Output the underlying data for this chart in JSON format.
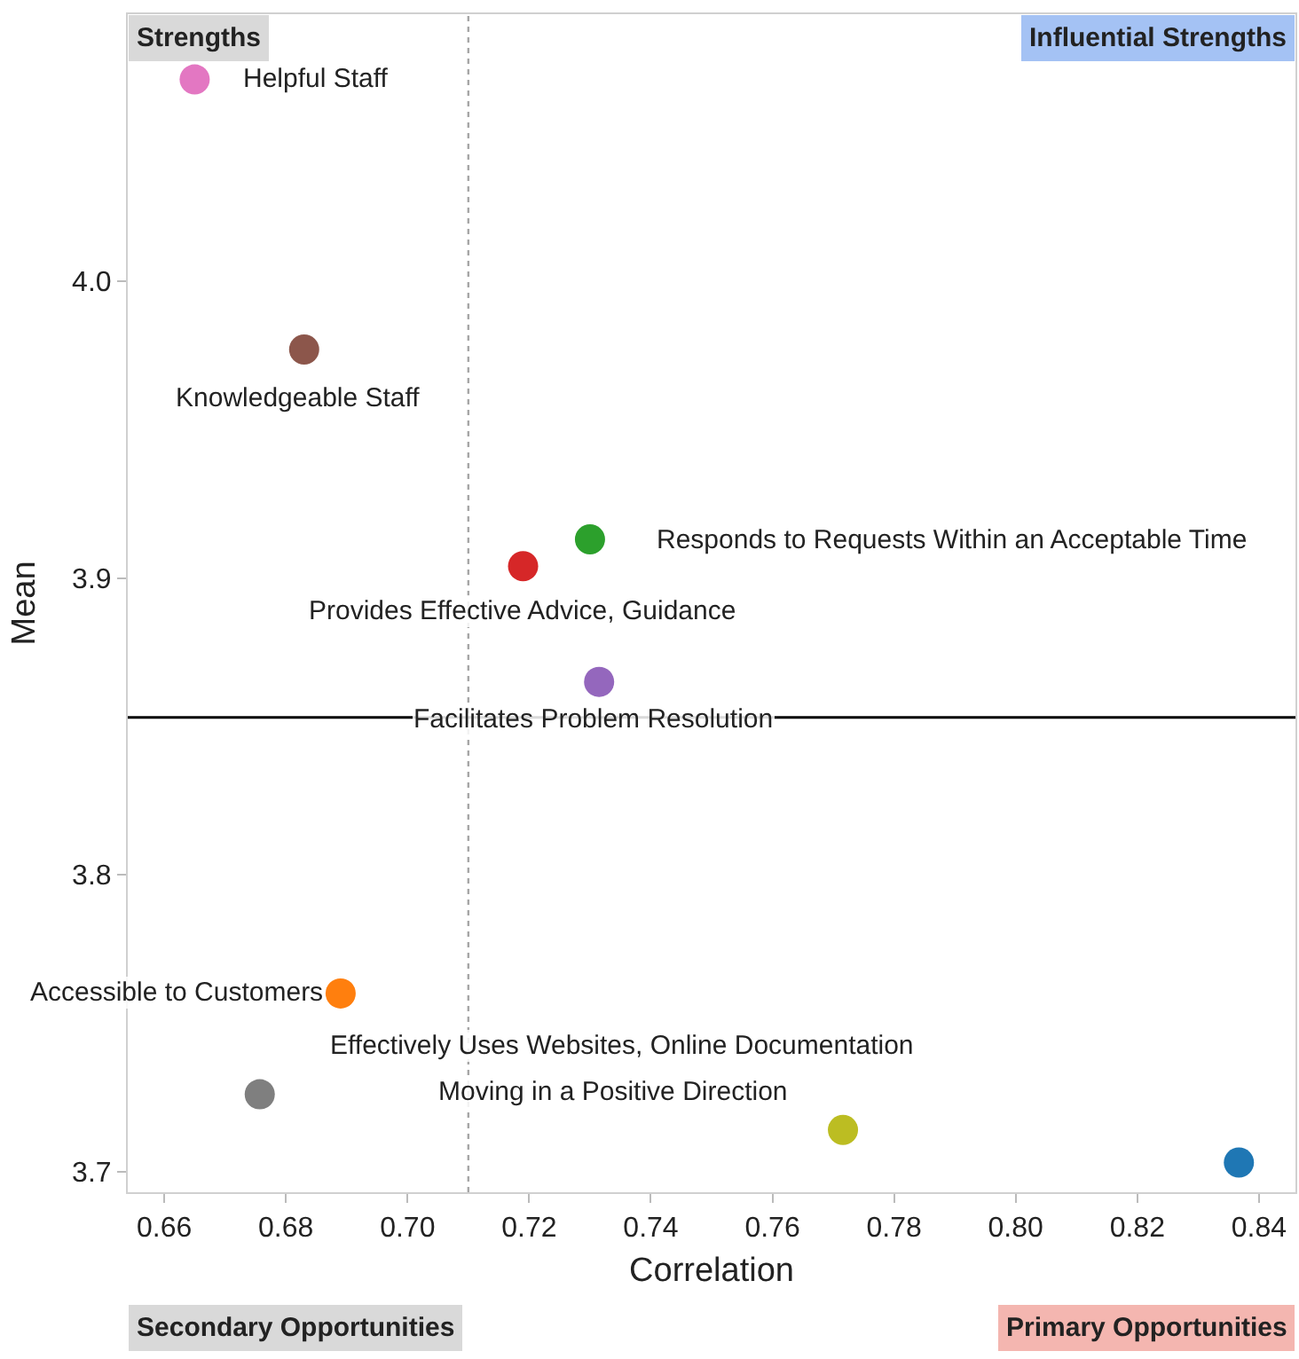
{
  "chart_data": {
    "type": "scatter",
    "xlabel": "Correlation",
    "ylabel": "Mean",
    "x": [
      0.665,
      0.683,
      0.73,
      0.719,
      0.7315,
      0.689,
      0.6757,
      0.7716,
      0.8367
    ],
    "values": [
      4.068,
      3.977,
      3.913,
      3.904,
      3.865,
      3.76,
      3.726,
      3.714,
      3.703
    ],
    "colors": [
      "#e377c2",
      "#8c564b",
      "#2ca02c",
      "#d62728",
      "#9467bd",
      "#ff7f0e",
      "#7f7f7f",
      "#bcbd22",
      "#1f77b4"
    ],
    "marker": "circle",
    "xlim": [
      0.654,
      0.846
    ],
    "ylim": [
      3.693,
      4.09
    ],
    "xticks": [
      0.66,
      0.68,
      {
        "value": 0.7,
        "label": "0.70"
      },
      0.72,
      0.74,
      0.76,
      0.78,
      {
        "value": 0.8,
        "label": "0.80"
      },
      0.82,
      0.84
    ],
    "yticks": [
      3.7,
      3.8,
      3.9,
      {
        "value": 4.0,
        "label": "4.0"
      }
    ],
    "ref_lines": [
      {
        "axis": "x",
        "value": 0.71,
        "color": "#a6a6a6",
        "line_style": "dotted"
      },
      {
        "axis": "y",
        "value": 3.853,
        "color": "#000000",
        "line_style": "solid"
      }
    ],
    "annotations": [
      {
        "text": "Helpful Staff",
        "x": 0.665,
        "y": 4.068
      },
      {
        "text": "Knowledgeable Staff",
        "x": 0.683,
        "y": 3.977
      },
      {
        "text": "Responds to Requests Within an Acceptable Time",
        "x": 0.73,
        "y": 3.913
      },
      {
        "text": "Provides Effective Advice, Guidance",
        "x": 0.719,
        "y": 3.904
      },
      {
        "text": "Facilitates Problem Resolution",
        "x": 0.7315,
        "y": 3.865
      },
      {
        "text": "Accessible to Customers",
        "x": 0.689,
        "y": 3.76
      },
      {
        "text": "Effectively Uses Websites, Online Documentation",
        "x": 0.6757,
        "y": 3.726
      },
      {
        "text": "Moving in a Positive Direction",
        "x": 0.7716,
        "y": 3.714
      },
      "Strengths",
      "Influential Strengths",
      "Secondary Opportunities",
      "Primary Opportunities"
    ]
  }
}
